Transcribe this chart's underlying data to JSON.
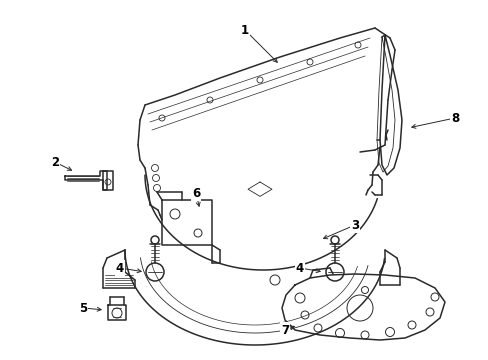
{
  "background_color": "#ffffff",
  "line_color": "#2a2a2a",
  "label_color": "#000000",
  "figsize": [
    4.89,
    3.6
  ],
  "dpi": 100,
  "lw_main": 1.1,
  "lw_thin": 0.6,
  "lw_detail": 0.5
}
